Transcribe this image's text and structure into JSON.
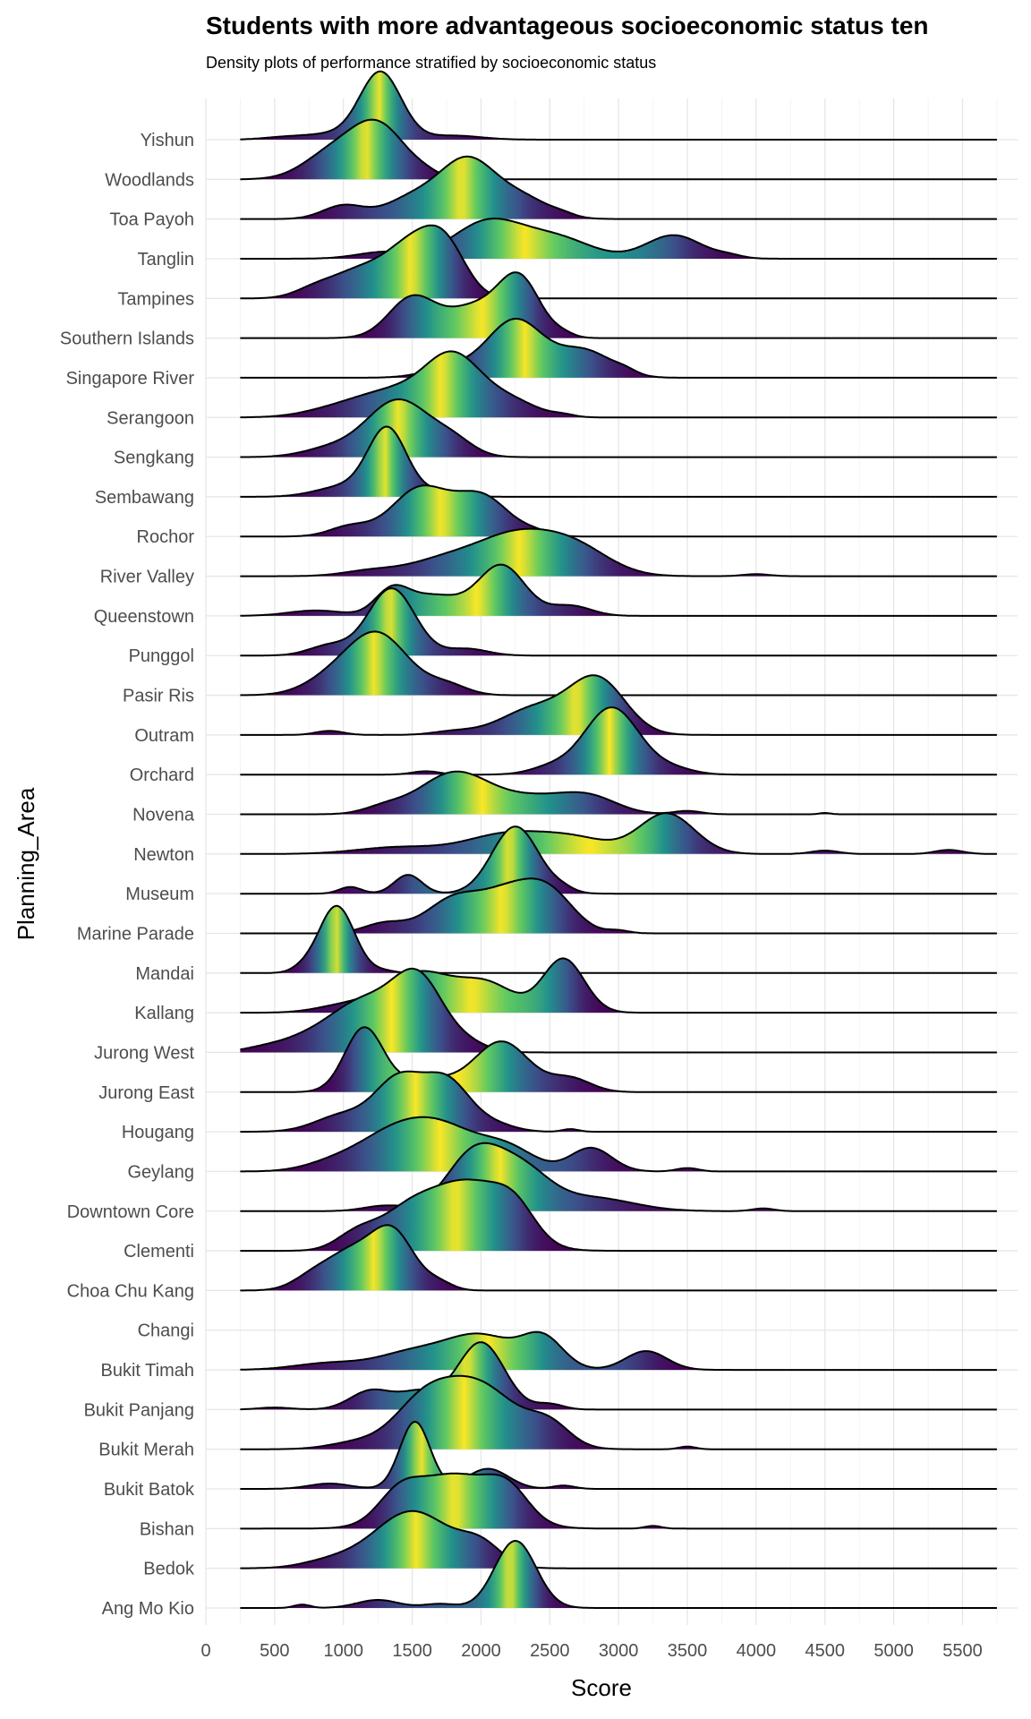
{
  "chart_data": {
    "type": "ridgeline",
    "title": "Students with more advantageous socioeconomic status ten",
    "subtitle": "Density plots of performance stratified by socioeconomic status",
    "xlabel": "Score",
    "ylabel": "Planning_Area",
    "xlim": [
      0,
      5900
    ],
    "x_ticks": [
      0,
      500,
      1000,
      1500,
      2000,
      2500,
      3000,
      3500,
      4000,
      4500,
      5000,
      5500
    ],
    "x_tick_labels": [
      "0",
      "500",
      "1000",
      "1500",
      "2000",
      "2500",
      "3000",
      "3500",
      "4000",
      "4500",
      "5000",
      "5500"
    ],
    "baseline_range": [
      250,
      5750
    ],
    "grid": true,
    "fill": "viridis gradient by score quantile",
    "series": [
      {
        "name": "Ang Mo Kio",
        "peaks": [
          [
            700,
            0.05,
            60
          ],
          [
            1250,
            0.12,
            150
          ],
          [
            1700,
            0.06,
            120
          ],
          [
            2250,
            1.0,
            150
          ]
        ]
      },
      {
        "name": "Bedok",
        "peaks": [
          [
            900,
            0.1,
            200
          ],
          [
            1500,
            0.85,
            280
          ],
          [
            2000,
            0.3,
            150
          ]
        ]
      },
      {
        "name": "Bishan",
        "peaks": [
          [
            1400,
            0.35,
            150
          ],
          [
            1800,
            0.8,
            300
          ],
          [
            2200,
            0.4,
            150
          ],
          [
            3250,
            0.04,
            60
          ]
        ]
      },
      {
        "name": "Bukit Batok",
        "peaks": [
          [
            900,
            0.08,
            150
          ],
          [
            1520,
            1.0,
            110
          ],
          [
            2050,
            0.3,
            150
          ],
          [
            2600,
            0.05,
            80
          ]
        ]
      },
      {
        "name": "Bukit Merah",
        "peaks": [
          [
            1100,
            0.1,
            200
          ],
          [
            1550,
            0.45,
            200
          ],
          [
            1950,
            1.0,
            300
          ],
          [
            2500,
            0.3,
            150
          ],
          [
            3500,
            0.04,
            60
          ]
        ]
      },
      {
        "name": "Bukit Panjang",
        "peaks": [
          [
            500,
            0.03,
            120
          ],
          [
            1200,
            0.28,
            150
          ],
          [
            1550,
            0.25,
            150
          ],
          [
            2000,
            1.0,
            170
          ],
          [
            2500,
            0.08,
            100
          ]
        ]
      },
      {
        "name": "Bukit Timah",
        "peaks": [
          [
            900,
            0.1,
            250
          ],
          [
            1500,
            0.25,
            250
          ],
          [
            2000,
            0.5,
            250
          ],
          [
            2450,
            0.45,
            150
          ],
          [
            3200,
            0.28,
            150
          ]
        ]
      },
      {
        "name": "Changi",
        "peaks": []
      },
      {
        "name": "Choa Chu Kang",
        "peaks": [
          [
            800,
            0.25,
            150
          ],
          [
            1050,
            0.45,
            150
          ],
          [
            1350,
            0.9,
            160
          ],
          [
            1700,
            0.1,
            100
          ]
        ]
      },
      {
        "name": "Clementi",
        "peaks": [
          [
            1100,
            0.25,
            150
          ],
          [
            1450,
            0.45,
            200
          ],
          [
            1900,
            1.0,
            280
          ],
          [
            2250,
            0.4,
            150
          ]
        ]
      },
      {
        "name": "Downtown Core",
        "peaks": [
          [
            1300,
            0.08,
            150
          ],
          [
            1950,
            0.85,
            200
          ],
          [
            2300,
            0.55,
            200
          ],
          [
            2800,
            0.2,
            300
          ],
          [
            4050,
            0.04,
            80
          ]
        ]
      },
      {
        "name": "Geylang",
        "peaks": [
          [
            900,
            0.1,
            200
          ],
          [
            1300,
            0.4,
            250
          ],
          [
            1700,
            0.65,
            280
          ],
          [
            2200,
            0.3,
            200
          ],
          [
            2800,
            0.35,
            150
          ],
          [
            3500,
            0.05,
            80
          ]
        ]
      },
      {
        "name": "Hougang",
        "peaks": [
          [
            1000,
            0.25,
            200
          ],
          [
            1400,
            0.75,
            170
          ],
          [
            1750,
            0.75,
            170
          ],
          [
            2100,
            0.1,
            150
          ],
          [
            2650,
            0.04,
            60
          ]
        ]
      },
      {
        "name": "Jurong East",
        "peaks": [
          [
            1150,
            0.95,
            140
          ],
          [
            1600,
            0.2,
            200
          ],
          [
            2150,
            0.75,
            200
          ],
          [
            2650,
            0.2,
            150
          ]
        ]
      },
      {
        "name": "Jurong West",
        "peaks": [
          [
            400,
            0.05,
            150
          ],
          [
            700,
            0.15,
            200
          ],
          [
            1150,
            0.75,
            250
          ],
          [
            1550,
            1.0,
            180
          ],
          [
            1900,
            0.12,
            150
          ]
        ]
      },
      {
        "name": "Kallang",
        "peaks": [
          [
            1000,
            0.1,
            200
          ],
          [
            1550,
            0.6,
            250
          ],
          [
            2050,
            0.4,
            200
          ],
          [
            2600,
            0.8,
            150
          ]
        ]
      },
      {
        "name": "Mandai",
        "peaks": [
          [
            700,
            0.05,
            80
          ],
          [
            950,
            1.0,
            130
          ],
          [
            1300,
            0.03,
            80
          ]
        ]
      },
      {
        "name": "Marine Parade",
        "peaks": [
          [
            1300,
            0.15,
            150
          ],
          [
            1800,
            0.5,
            200
          ],
          [
            2200,
            0.55,
            200
          ],
          [
            2500,
            0.55,
            180
          ],
          [
            3000,
            0.04,
            80
          ]
        ]
      },
      {
        "name": "Museum",
        "peaks": [
          [
            1050,
            0.1,
            80
          ],
          [
            1470,
            0.28,
            100
          ],
          [
            2250,
            1.0,
            170
          ],
          [
            2600,
            0.05,
            80
          ]
        ]
      },
      {
        "name": "Newton",
        "peaks": [
          [
            1400,
            0.1,
            300
          ],
          [
            2200,
            0.3,
            300
          ],
          [
            2700,
            0.2,
            250
          ],
          [
            3350,
            0.6,
            200
          ],
          [
            4500,
            0.05,
            100
          ],
          [
            5400,
            0.06,
            100
          ]
        ]
      },
      {
        "name": "Novena",
        "peaks": [
          [
            1300,
            0.1,
            150
          ],
          [
            1800,
            0.6,
            250
          ],
          [
            2400,
            0.25,
            300
          ],
          [
            2800,
            0.2,
            200
          ],
          [
            3500,
            0.05,
            100
          ],
          [
            4500,
            0.02,
            40
          ]
        ]
      },
      {
        "name": "Orchard",
        "peaks": [
          [
            1600,
            0.05,
            100
          ],
          [
            2500,
            0.1,
            150
          ],
          [
            2950,
            1.0,
            200
          ],
          [
            3400,
            0.08,
            150
          ]
        ]
      },
      {
        "name": "Outram",
        "peaks": [
          [
            900,
            0.06,
            100
          ],
          [
            1800,
            0.05,
            150
          ],
          [
            2400,
            0.4,
            250
          ],
          [
            2850,
            0.8,
            200
          ]
        ]
      },
      {
        "name": "Pasir Ris",
        "peaks": [
          [
            900,
            0.2,
            200
          ],
          [
            1250,
            0.9,
            220
          ],
          [
            1750,
            0.15,
            150
          ]
        ]
      },
      {
        "name": "Punggol",
        "peaks": [
          [
            900,
            0.15,
            150
          ],
          [
            1350,
            1.0,
            170
          ],
          [
            1900,
            0.1,
            150
          ]
        ]
      },
      {
        "name": "Queenstown",
        "peaks": [
          [
            800,
            0.08,
            200
          ],
          [
            1350,
            0.35,
            120
          ],
          [
            1650,
            0.3,
            200
          ],
          [
            2150,
            0.75,
            170
          ],
          [
            2650,
            0.15,
            150
          ]
        ]
      },
      {
        "name": "River Valley",
        "peaks": [
          [
            1200,
            0.08,
            200
          ],
          [
            1700,
            0.2,
            250
          ],
          [
            2250,
            0.6,
            300
          ],
          [
            2700,
            0.35,
            250
          ],
          [
            4000,
            0.03,
            100
          ]
        ]
      },
      {
        "name": "Rochor",
        "peaks": [
          [
            1050,
            0.15,
            150
          ],
          [
            1550,
            0.7,
            200
          ],
          [
            2000,
            0.6,
            200
          ],
          [
            2400,
            0.05,
            100
          ]
        ]
      },
      {
        "name": "Sembawang",
        "peaks": [
          [
            1000,
            0.15,
            200
          ],
          [
            1320,
            1.0,
            140
          ],
          [
            1700,
            0.08,
            150
          ]
        ]
      },
      {
        "name": "Sengkang",
        "peaks": [
          [
            900,
            0.12,
            200
          ],
          [
            1400,
            0.85,
            230
          ],
          [
            1800,
            0.2,
            150
          ]
        ]
      },
      {
        "name": "Serangoon",
        "peaks": [
          [
            1000,
            0.15,
            250
          ],
          [
            1400,
            0.35,
            250
          ],
          [
            1800,
            0.85,
            200
          ],
          [
            2200,
            0.25,
            200
          ],
          [
            2600,
            0.03,
            80
          ]
        ]
      },
      {
        "name": "Singapore River",
        "peaks": [
          [
            1800,
            0.15,
            200
          ],
          [
            2250,
            0.85,
            200
          ],
          [
            2750,
            0.4,
            200
          ],
          [
            3050,
            0.05,
            80
          ]
        ]
      },
      {
        "name": "Southern Islands",
        "peaks": [
          [
            1500,
            0.6,
            170
          ],
          [
            1950,
            0.45,
            200
          ],
          [
            2280,
            0.85,
            150
          ],
          [
            2600,
            0.05,
            80
          ]
        ]
      },
      {
        "name": "Tampines",
        "peaks": [
          [
            800,
            0.15,
            150
          ],
          [
            1100,
            0.35,
            180
          ],
          [
            1500,
            0.8,
            200
          ],
          [
            1750,
            0.6,
            150
          ]
        ]
      },
      {
        "name": "Tanglin",
        "peaks": [
          [
            1300,
            0.1,
            200
          ],
          [
            2050,
            0.55,
            250
          ],
          [
            2550,
            0.3,
            250
          ],
          [
            3400,
            0.35,
            200
          ],
          [
            3800,
            0.04,
            100
          ]
        ]
      },
      {
        "name": "Toa Payoh",
        "peaks": [
          [
            1000,
            0.2,
            150
          ],
          [
            1500,
            0.3,
            200
          ],
          [
            1900,
            0.85,
            200
          ],
          [
            2300,
            0.3,
            200
          ],
          [
            2600,
            0.03,
            80
          ]
        ]
      },
      {
        "name": "Woodlands",
        "peaks": [
          [
            900,
            0.35,
            200
          ],
          [
            1250,
            0.8,
            200
          ],
          [
            1600,
            0.05,
            100
          ]
        ]
      },
      {
        "name": "Yishun",
        "peaks": [
          [
            550,
            0.03,
            150
          ],
          [
            900,
            0.08,
            200
          ],
          [
            1270,
            1.0,
            150
          ],
          [
            1800,
            0.06,
            200
          ]
        ]
      }
    ]
  }
}
